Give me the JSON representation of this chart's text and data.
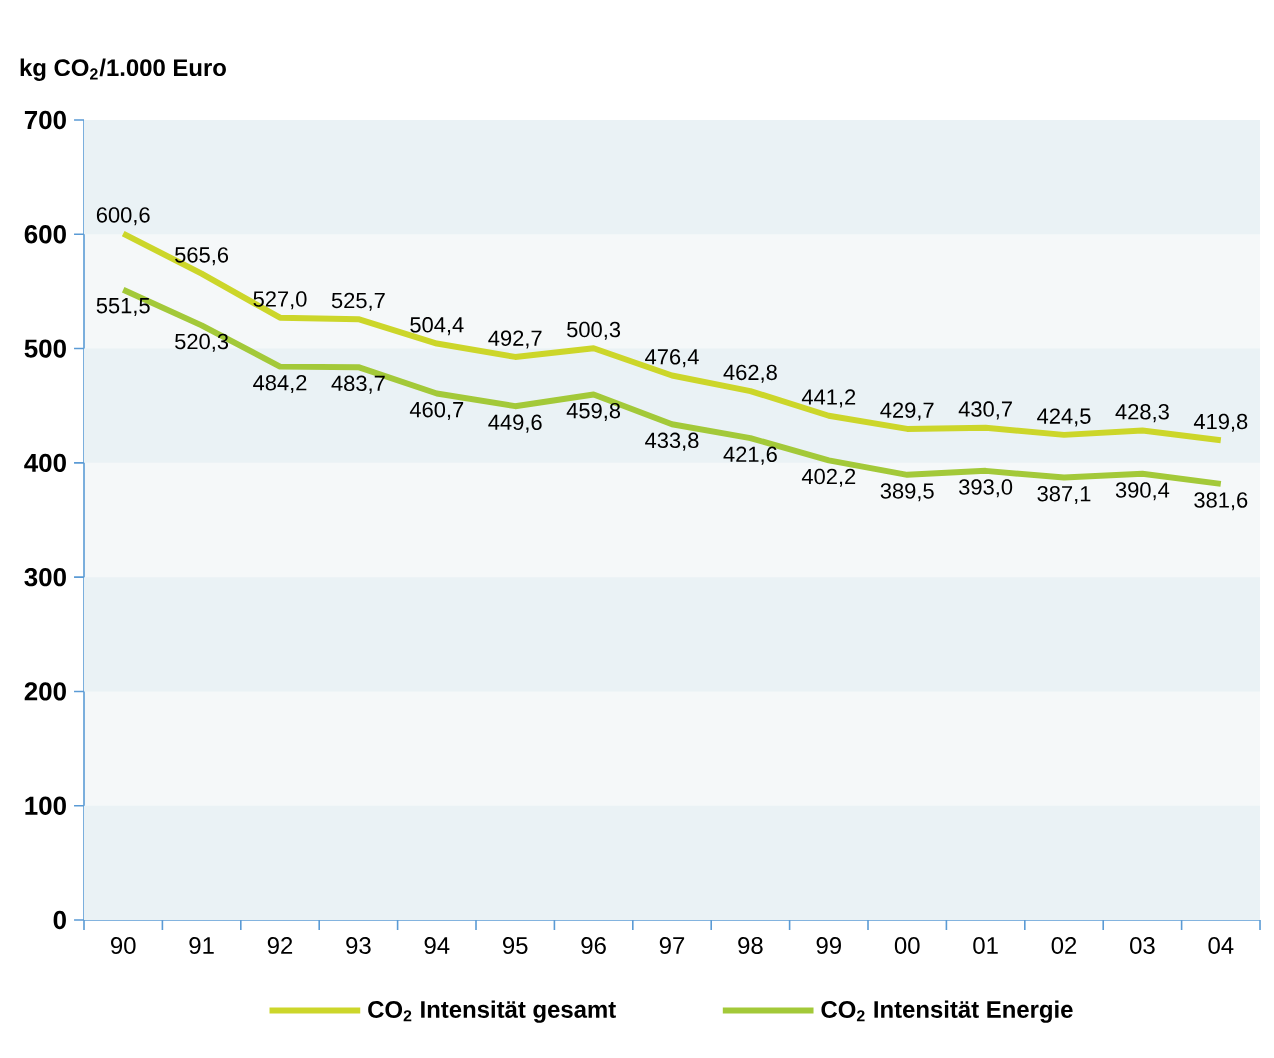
{
  "chart_data": {
    "type": "line",
    "ylabel": "kg CO$_{2}$/1.000 Euro",
    "categories": [
      "90",
      "91",
      "92",
      "93",
      "94",
      "95",
      "96",
      "97",
      "98",
      "99",
      "00",
      "01",
      "02",
      "03",
      "04"
    ],
    "series": [
      {
        "name": "CO$_{2}$ Intensität gesamt",
        "color": "#ccd62a",
        "values": [
          600.6,
          565.6,
          527.0,
          525.7,
          504.4,
          492.7,
          500.3,
          476.4,
          462.8,
          441.2,
          429.7,
          430.7,
          424.5,
          428.3,
          419.8
        ],
        "value_labels": [
          "600,6",
          "565,6",
          "527,0",
          "525,7",
          "504,4",
          "492,7",
          "500,3",
          "476,4",
          "462,8",
          "441,2",
          "429,7",
          "430,7",
          "424,5",
          "428,3",
          "419,8"
        ]
      },
      {
        "name": "CO$_{2}$ Intensität Energie",
        "color": "#a3c939",
        "values": [
          551.5,
          520.3,
          484.2,
          483.7,
          460.7,
          449.6,
          459.8,
          433.8,
          421.6,
          402.2,
          389.5,
          393.0,
          387.1,
          390.4,
          381.6
        ],
        "value_labels": [
          "551,5",
          "520,3",
          "484,2",
          "483,7",
          "460,7",
          "449,6",
          "459,8",
          "433,8",
          "421,6",
          "402,2",
          "389,5",
          "393,0",
          "387,1",
          "390,4",
          "381,6"
        ]
      }
    ],
    "ylim": [
      0,
      700
    ],
    "yticks": [
      0,
      100,
      200,
      300,
      400,
      500,
      600,
      700
    ],
    "bands": [
      {
        "axis": "y",
        "from": 0,
        "to": 100,
        "color": "#eaf2f5"
      },
      {
        "axis": "y",
        "from": 200,
        "to": 300,
        "color": "#eaf2f5"
      },
      {
        "axis": "y",
        "from": 400,
        "to": 500,
        "color": "#eaf2f5"
      },
      {
        "axis": "y",
        "from": 600,
        "to": 700,
        "color": "#eaf2f5"
      }
    ],
    "legend": "bottom",
    "marker": "none",
    "line_style": "solid",
    "grid": false
  }
}
